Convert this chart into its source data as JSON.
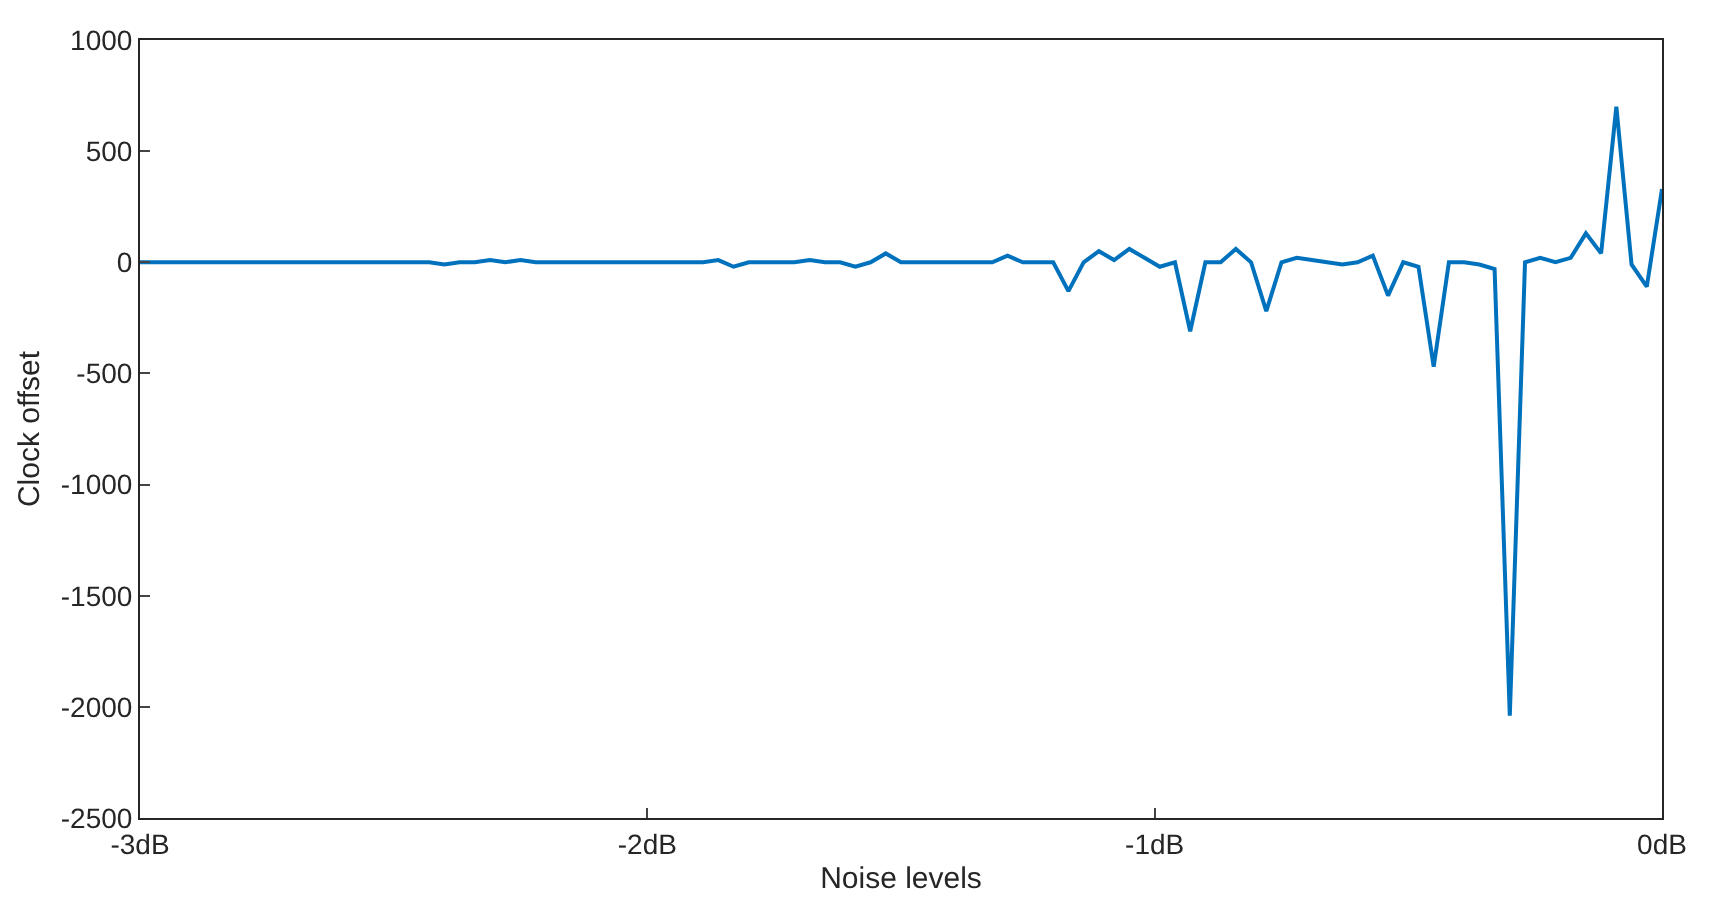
{
  "chart_data": {
    "type": "line",
    "xlabel": "Noise levels",
    "ylabel": "Clock offset",
    "x": [
      -3,
      -2.97,
      -2.94,
      -2.91,
      -2.88,
      -2.85,
      -2.82,
      -2.79,
      -2.76,
      -2.73,
      -2.7,
      -2.67,
      -2.64,
      -2.61,
      -2.58,
      -2.55,
      -2.52,
      -2.49,
      -2.46,
      -2.43,
      -2.4,
      -2.37,
      -2.34,
      -2.31,
      -2.28,
      -2.25,
      -2.22,
      -2.19,
      -2.16,
      -2.13,
      -2.1,
      -2.07,
      -2.04,
      -2.01,
      -1.98,
      -1.95,
      -1.92,
      -1.89,
      -1.86,
      -1.83,
      -1.8,
      -1.77,
      -1.74,
      -1.71,
      -1.68,
      -1.65,
      -1.62,
      -1.59,
      -1.56,
      -1.53,
      -1.5,
      -1.47,
      -1.44,
      -1.41,
      -1.38,
      -1.35,
      -1.32,
      -1.29,
      -1.26,
      -1.23,
      -1.2,
      -1.17,
      -1.14,
      -1.11,
      -1.08,
      -1.05,
      -1.02,
      -0.99,
      -0.96,
      -0.93,
      -0.9,
      -0.87,
      -0.84,
      -0.81,
      -0.78,
      -0.75,
      -0.72,
      -0.69,
      -0.66,
      -0.63,
      -0.6,
      -0.57,
      -0.54,
      -0.51,
      -0.48,
      -0.45,
      -0.42,
      -0.39,
      -0.36,
      -0.33,
      -0.3,
      -0.27,
      -0.24,
      -0.21,
      -0.18,
      -0.15,
      -0.12,
      -0.09,
      -0.06,
      -0.03,
      0
    ],
    "series": [
      {
        "color": "#0072bd",
        "values": [
          0,
          0,
          0,
          0,
          0,
          0,
          0,
          0,
          0,
          0,
          0,
          0,
          0,
          0,
          0,
          0,
          0,
          0,
          0,
          0,
          -10,
          0,
          0,
          10,
          0,
          10,
          0,
          0,
          0,
          0,
          0,
          0,
          0,
          0,
          0,
          0,
          0,
          0,
          10,
          -20,
          0,
          0,
          0,
          0,
          10,
          0,
          0,
          -20,
          0,
          40,
          0,
          0,
          0,
          0,
          0,
          0,
          0,
          30,
          0,
          0,
          0,
          -130,
          0,
          50,
          10,
          60,
          20,
          -20,
          0,
          -310,
          0,
          0,
          60,
          0,
          -220,
          0,
          20,
          10,
          0,
          -10,
          0,
          30,
          -150,
          0,
          -20,
          -470,
          0,
          0,
          -10,
          -30,
          -2040,
          0,
          20,
          0,
          20,
          130,
          40,
          700,
          -10,
          -110,
          330
        ]
      }
    ],
    "xlim": [
      -3,
      0
    ],
    "ylim": [
      -2500,
      1000
    ],
    "xticks": [
      {
        "value": -3,
        "label": "-3dB"
      },
      {
        "value": -2,
        "label": "-2dB"
      },
      {
        "value": -1,
        "label": "-1dB"
      },
      {
        "value": 0,
        "label": "0dB"
      }
    ],
    "yticks": [
      -2500,
      -2000,
      -1500,
      -1000,
      -500,
      0,
      500,
      1000
    ],
    "legend": false,
    "marker": "none",
    "line_style": "solid"
  }
}
